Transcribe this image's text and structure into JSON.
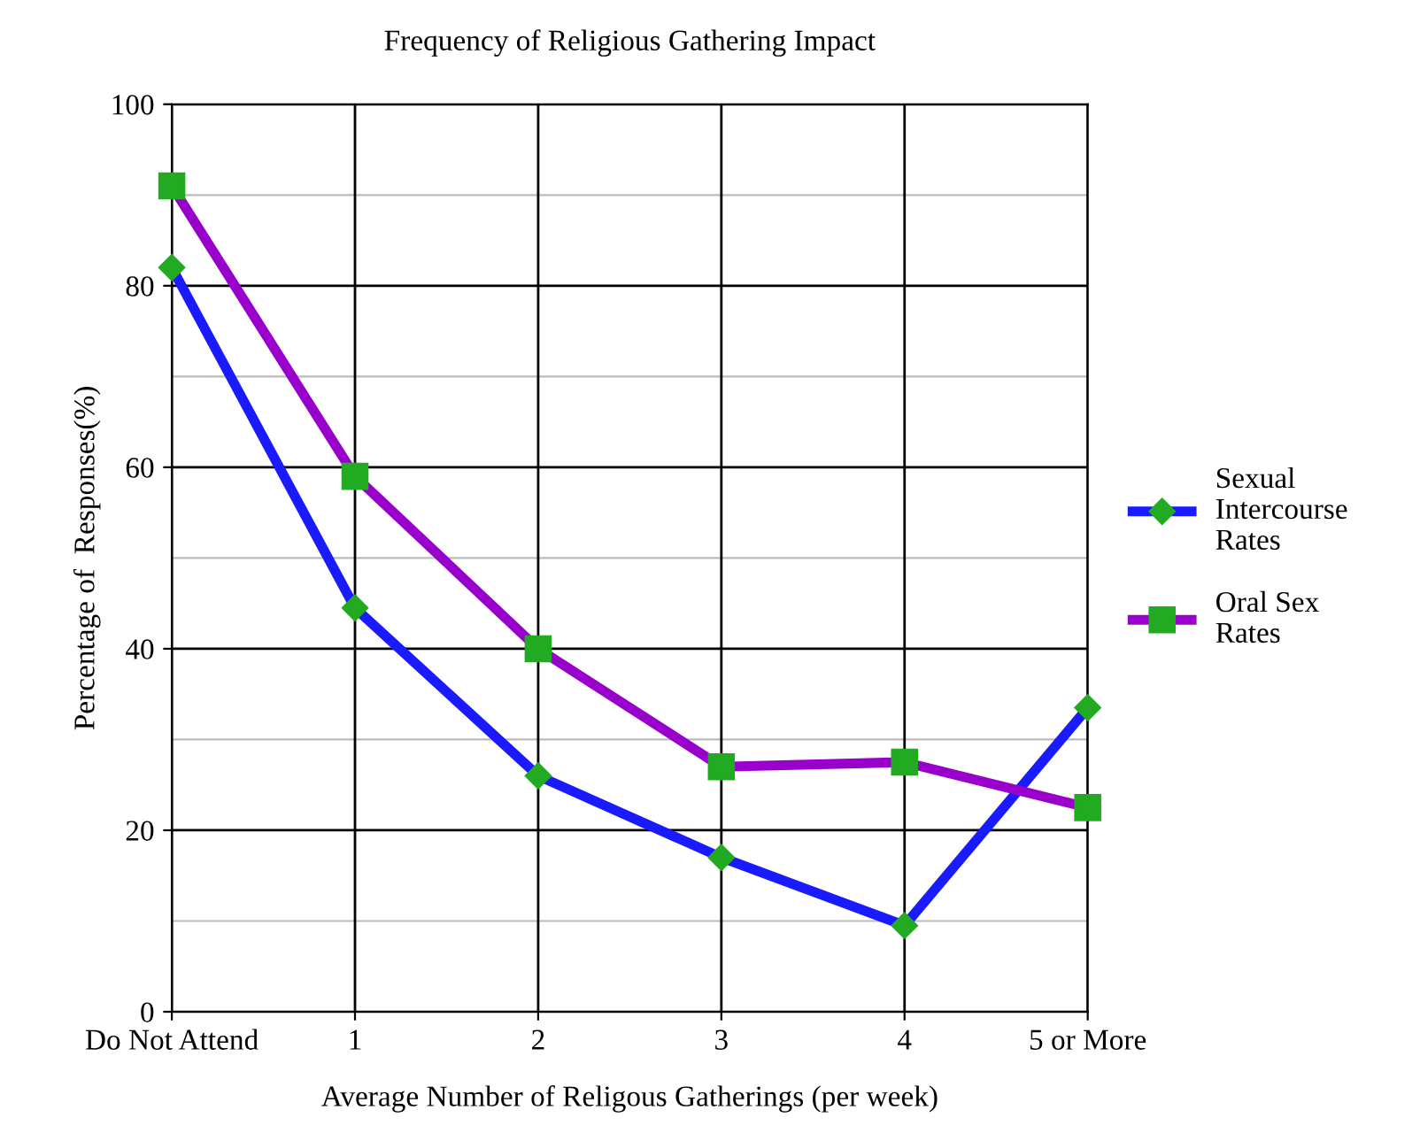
{
  "chart_data": {
    "type": "line",
    "title": "Frequency of Religious Gathering Impact",
    "xlabel": "Average Number of Religous Gatherings (per week)",
    "ylabel": "Percentage of  Responses(%)",
    "categories": [
      "Do Not Attend",
      "1",
      "2",
      "3",
      "4",
      "5 or More"
    ],
    "series": [
      {
        "name": "Sexual Intercourse Rates",
        "color": "#1a1aff",
        "marker": "diamond",
        "values": [
          82,
          44.5,
          26,
          17,
          9.5,
          33.5
        ]
      },
      {
        "name": "Oral Sex Rates",
        "color": "#9900cc",
        "marker": "square",
        "values": [
          91,
          59,
          40,
          27,
          27.5,
          22.5
        ]
      }
    ],
    "ylim": [
      0,
      100
    ],
    "yticks": [
      0,
      20,
      40,
      60,
      80,
      100
    ],
    "grid": true,
    "legend": "right",
    "line_style": "solid"
  }
}
